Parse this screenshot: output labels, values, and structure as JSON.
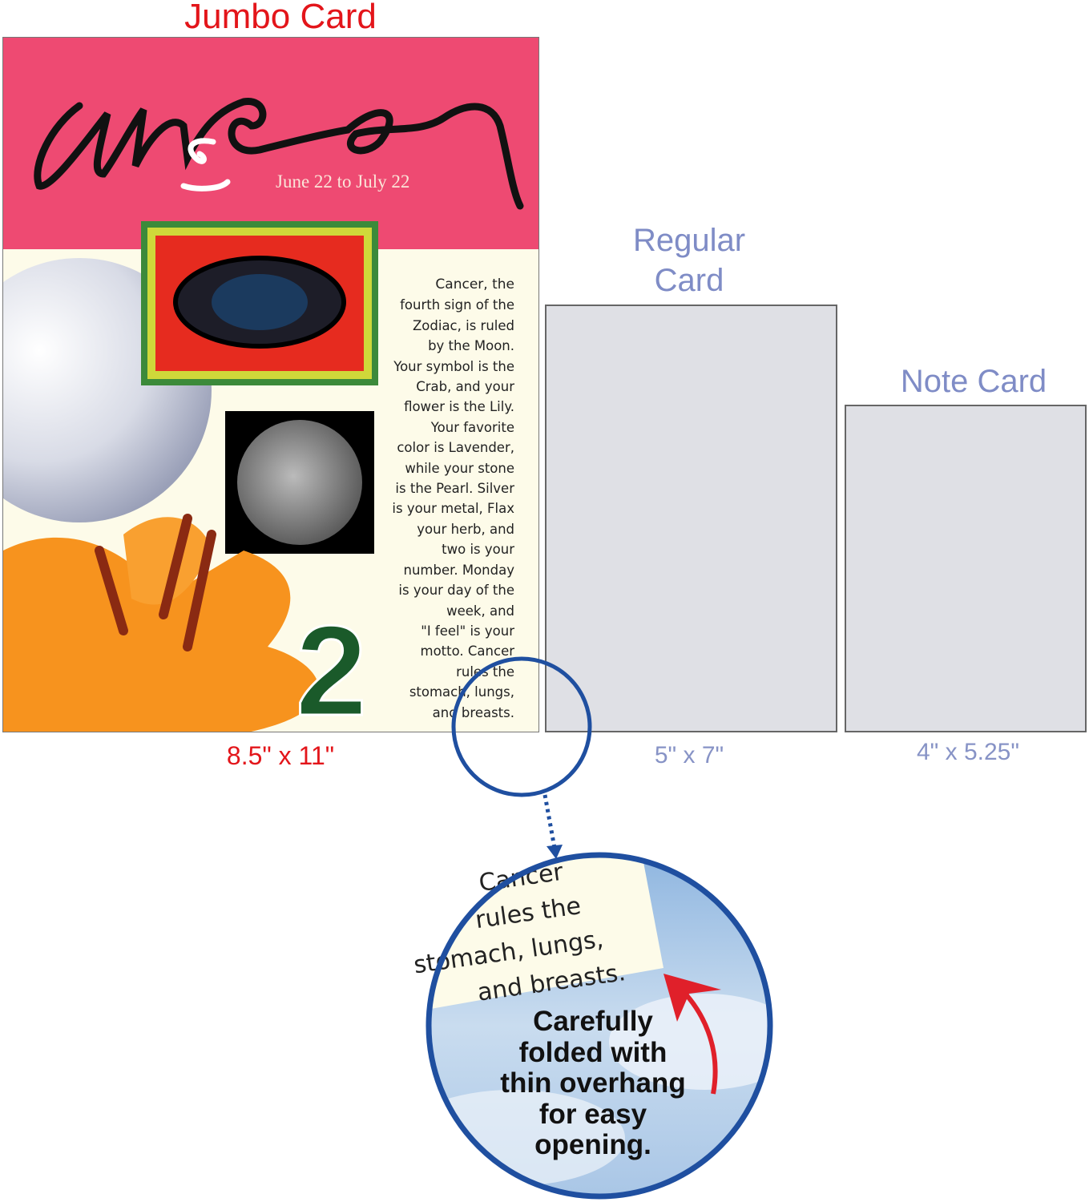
{
  "jumbo": {
    "title": "Jumbo Card",
    "size": "8.5\" x 11\"",
    "card": {
      "handwritten_title": "cancer",
      "dates": "June 22 to July 22",
      "number": "2",
      "text_lines": [
        "Cancer, the",
        "fourth sign of the",
        "Zodiac, is ruled",
        "by the Moon.",
        "Your symbol is the",
        "Crab, and your",
        "flower is the Lily.",
        "Your favorite",
        "color is Lavender,",
        "while your stone",
        "is the Pearl. Silver",
        "is your metal, Flax",
        "your herb, and",
        "two is your",
        "number. Monday",
        "is your day of the",
        "week, and",
        "\"I feel\" is your",
        "motto. Cancer",
        "rules the",
        "stomach, lungs,",
        "and breasts."
      ],
      "colors": {
        "header": "#ee4a72",
        "body": "#fdfbe9"
      }
    }
  },
  "regular": {
    "title_line1": "Regular",
    "title_line2": "Card",
    "size": "5\" x 7\""
  },
  "note": {
    "title": "Note Card",
    "size": "4\" x 5.25\""
  },
  "callout": {
    "zoom_lines": [
      "Cancer",
      "rules the",
      "stomach, lungs,",
      "and breasts."
    ],
    "caption_lines": [
      "Carefully",
      "folded with",
      "thin overhang",
      "for easy",
      "opening."
    ],
    "colors": {
      "circle": "#1f4fa0",
      "arrow": "#e0202a"
    }
  },
  "colors": {
    "jumbo_label": "#e3151a",
    "other_labels": "#7f8cc6"
  }
}
